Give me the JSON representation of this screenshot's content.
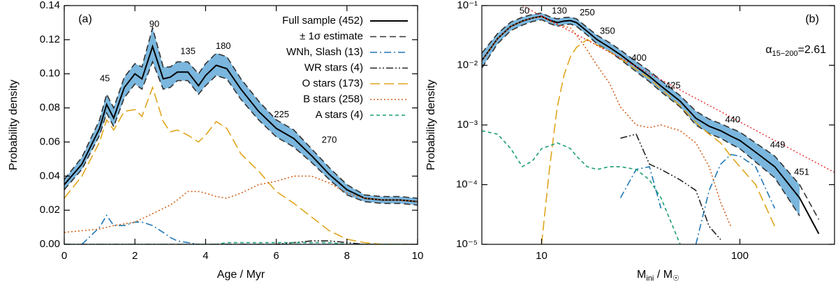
{
  "chart_data": [
    {
      "type": "line",
      "panel_label": "(a)",
      "xlabel": "Age / Myr",
      "ylabel": "Probability density",
      "xlim": [
        0,
        10
      ],
      "ylim": [
        0,
        0.14
      ],
      "xlog": false,
      "ylog": false,
      "legend": "upper right",
      "xticks": [
        0,
        2,
        4,
        6,
        8,
        10
      ],
      "yticks": [
        {
          "value": 0,
          "label": "0.00"
        },
        {
          "value": 0.02,
          "label": "0.02"
        },
        {
          "value": 0.04,
          "label": "0.04"
        },
        {
          "value": 0.06,
          "label": "0.06"
        },
        {
          "value": 0.08,
          "label": "0.08"
        },
        {
          "value": 0.1,
          "label": "0.10"
        },
        {
          "value": 0.12,
          "label": "0.12"
        },
        {
          "value": 0.14,
          "label": "0.14"
        }
      ],
      "x": [
        0,
        0.5,
        1,
        1.2,
        1.4,
        1.7,
        2,
        2.2,
        2.5,
        2.8,
        3,
        3.2,
        3.5,
        3.8,
        4,
        4.3,
        4.6,
        5,
        5.5,
        6,
        6.5,
        7,
        7.5,
        8,
        8.5,
        9,
        9.5,
        10
      ],
      "series": [
        {
          "name": "Full sample (452)",
          "color": "#000000",
          "style": "solid",
          "values": [
            0.035,
            0.047,
            0.068,
            0.082,
            0.074,
            0.092,
            0.1,
            0.097,
            0.116,
            0.097,
            0.098,
            0.101,
            0.101,
            0.093,
            0.099,
            0.105,
            0.103,
            0.091,
            0.078,
            0.068,
            0.062,
            0.052,
            0.041,
            0.032,
            0.027,
            0.026,
            0.026,
            0.025
          ]
        },
        {
          "name": "± 1σ estimate",
          "color": "#333333",
          "fill": "#7ab6dd",
          "style": "dash",
          "upper": [
            0.038,
            0.051,
            0.073,
            0.088,
            0.08,
            0.098,
            0.106,
            0.104,
            0.127,
            0.104,
            0.104,
            0.107,
            0.107,
            0.1,
            0.106,
            0.112,
            0.11,
            0.097,
            0.084,
            0.073,
            0.067,
            0.056,
            0.045,
            0.035,
            0.029,
            0.028,
            0.028,
            0.027
          ],
          "lower": [
            0.032,
            0.044,
            0.064,
            0.077,
            0.069,
            0.086,
            0.094,
            0.091,
            0.107,
            0.091,
            0.092,
            0.096,
            0.096,
            0.088,
            0.093,
            0.099,
            0.097,
            0.085,
            0.073,
            0.063,
            0.057,
            0.048,
            0.038,
            0.029,
            0.025,
            0.024,
            0.024,
            0.023
          ]
        },
        {
          "name": "WNh, Slash (13)",
          "color": "#1f77b4",
          "style": "dashdot",
          "values": [
            null,
            0,
            0.01,
            0.017,
            0.011,
            0.011,
            0.013,
            0.013,
            0.011,
            0.007,
            0.004,
            0.002,
            0.001,
            0,
            0,
            0,
            0,
            0,
            0,
            0,
            0,
            0,
            0,
            0,
            0,
            0,
            0,
            0
          ]
        },
        {
          "name": "WR stars (4)",
          "color": "#222222",
          "style": "dashdotdot",
          "values": [
            0,
            0,
            0,
            0,
            0,
            0,
            0,
            0,
            0,
            0,
            0,
            0,
            0,
            0,
            0,
            0,
            0,
            0,
            0,
            0,
            0.001,
            0.002,
            0.002,
            0.001,
            0,
            0,
            0,
            0
          ]
        },
        {
          "name": "O stars (173)",
          "color": "#e0a51c",
          "style": "longdash",
          "values": [
            0.027,
            0.04,
            0.06,
            0.073,
            0.067,
            0.078,
            0.079,
            0.075,
            0.092,
            0.072,
            0.066,
            0.067,
            0.064,
            0.06,
            0.064,
            0.072,
            0.068,
            0.053,
            0.043,
            0.031,
            0.024,
            0.016,
            0.008,
            0.003,
            0.001,
            0,
            0,
            0
          ]
        },
        {
          "name": "B stars (258)",
          "color": "#d2601a",
          "style": "dot",
          "values": [
            0.007,
            0.008,
            0.009,
            0.01,
            0.011,
            0.012,
            0.013,
            0.015,
            0.018,
            0.021,
            0.023,
            0.026,
            0.031,
            0.031,
            0.03,
            0.028,
            0.027,
            0.03,
            0.035,
            0.037,
            0.04,
            0.04,
            0.036,
            0.03,
            0.027,
            0.026,
            0.026,
            0.025
          ]
        },
        {
          "name": "A stars (4)",
          "color": "#1a9e77",
          "style": "shortdash",
          "values": [
            0,
            0,
            0,
            0,
            0,
            0,
            0,
            0,
            0,
            0,
            0,
            0,
            0,
            0,
            0,
            0,
            0.001,
            0.001,
            0.001,
            0.001,
            0.001,
            0.001,
            0.001,
            0,
            0,
            0,
            0,
            0
          ]
        }
      ],
      "annotations": [
        {
          "text": 45,
          "x": 1.15,
          "y": 0.097
        },
        {
          "text": 90,
          "x": 2.55,
          "y": 0.129
        },
        {
          "text": 135,
          "x": 3.5,
          "y": 0.113
        },
        {
          "text": 180,
          "x": 4.5,
          "y": 0.116
        },
        {
          "text": 225,
          "x": 6.15,
          "y": 0.076
        },
        {
          "text": 270,
          "x": 7.5,
          "y": 0.061
        }
      ]
    },
    {
      "type": "line",
      "panel_label": "(b)",
      "xlabel": [
        "M",
        "ini",
        " / M",
        "☉"
      ],
      "ylabel": "Probability density",
      "xlim": [
        5,
        300
      ],
      "ylim": [
        1e-05,
        0.1
      ],
      "xlog": true,
      "ylog": true,
      "xticks": [
        10,
        100
      ],
      "yticks": [
        {
          "value": 1e-05,
          "label": "10⁻⁵"
        },
        {
          "value": 0.0001,
          "label": "10⁻⁴"
        },
        {
          "value": 0.001,
          "label": "10⁻³"
        },
        {
          "value": 0.01,
          "label": "10⁻²"
        },
        {
          "value": 0.1,
          "label": "10⁻¹"
        }
      ],
      "x": [
        5,
        6,
        7,
        8,
        9,
        10,
        11,
        12,
        13,
        14,
        15,
        17,
        19,
        22,
        25,
        30,
        35,
        40,
        50,
        60,
        70,
        80,
        90,
        100,
        120,
        150,
        200,
        250,
        300
      ],
      "series": [
        {
          "name": "Full sample (452)",
          "color": "#000000",
          "style": "solid",
          "values": [
            0.012,
            0.028,
            0.045,
            0.055,
            0.062,
            0.066,
            0.057,
            0.052,
            0.055,
            0.056,
            0.052,
            0.037,
            0.027,
            0.02,
            0.015,
            0.0095,
            0.0065,
            0.0045,
            0.0025,
            0.0013,
            0.00095,
            0.0008,
            0.00065,
            0.00055,
            0.00035,
            0.0002,
            6e-05,
            1.5e-05,
            null
          ]
        },
        {
          "name": "± 1σ estimate",
          "color": "#333333",
          "fill": "#7ab6dd",
          "style": "dash",
          "upper": [
            0.016,
            0.034,
            0.053,
            0.064,
            0.071,
            0.075,
            0.065,
            0.06,
            0.063,
            0.064,
            0.06,
            0.043,
            0.032,
            0.024,
            0.018,
            0.0115,
            0.008,
            0.0056,
            0.0031,
            0.0017,
            0.00125,
            0.00105,
            0.00088,
            0.00076,
            0.0005,
            0.0003,
            0.0001,
            2.6e-05,
            null
          ],
          "lower": [
            0.009,
            0.023,
            0.038,
            0.047,
            0.054,
            0.058,
            0.05,
            0.045,
            0.048,
            0.049,
            0.045,
            0.032,
            0.023,
            0.017,
            0.0125,
            0.0078,
            0.0053,
            0.0036,
            0.002,
            0.001,
            0.00072,
            0.0006,
            0.00048,
            0.0004,
            0.00024,
            0.00013,
            3e-05,
            null,
            null
          ]
        },
        {
          "name": "WNh, Slash (13)",
          "color": "#1f77b4",
          "style": "dashdot",
          "values": [
            null,
            null,
            null,
            null,
            null,
            null,
            null,
            null,
            null,
            null,
            null,
            null,
            null,
            null,
            6e-05,
            0.00018,
            0.0002,
            4e-05,
            null,
            1e-05,
            8e-05,
            0.00022,
            0.00032,
            0.0003,
            0.0002,
            4e-05,
            null,
            null,
            null
          ]
        },
        {
          "name": "WR stars (4)",
          "color": "#222222",
          "style": "dashdotdot",
          "values": [
            null,
            null,
            null,
            null,
            null,
            null,
            null,
            null,
            null,
            null,
            null,
            null,
            null,
            null,
            0.0006,
            0.0007,
            0.00022,
            0.00018,
            0.00012,
            8e-05,
            2e-05,
            1.2e-05,
            null,
            null,
            null,
            null,
            null,
            null,
            null
          ]
        },
        {
          "name": "O stars (173)",
          "color": "#e0a51c",
          "style": "longdash",
          "values": [
            null,
            null,
            null,
            null,
            null,
            1e-05,
            0.0002,
            0.002,
            0.007,
            0.014,
            0.02,
            0.027,
            0.022,
            0.017,
            0.013,
            0.0085,
            0.006,
            0.004,
            0.0021,
            0.0011,
            0.0007,
            0.0005,
            0.0003,
            0.0002,
            0.0001,
            2e-05,
            null,
            null,
            null
          ]
        },
        {
          "name": "B stars (258)",
          "color": "#d2601a",
          "style": "dot",
          "values": [
            0.012,
            0.028,
            0.045,
            0.055,
            0.062,
            0.065,
            0.055,
            0.048,
            0.045,
            0.042,
            0.032,
            0.018,
            0.01,
            0.005,
            0.002,
            0.001,
            0.0009,
            0.001,
            0.0008,
            0.0005,
            0.0002,
            5e-05,
            2e-05,
            null,
            null,
            null,
            null,
            null,
            null
          ]
        },
        {
          "name": "A stars (4)",
          "color": "#1a9e77",
          "style": "shortdash",
          "values": [
            0.0008,
            0.0007,
            0.0004,
            0.0002,
            0.00025,
            0.0004,
            0.00045,
            0.0005,
            0.00045,
            0.0004,
            0.0003,
            0.0002,
            0.00018,
            0.0002,
            0.0002,
            0.00018,
            0.00012,
            6e-05,
            1e-05,
            null,
            null,
            null,
            null,
            null,
            null,
            null,
            null,
            null,
            null
          ]
        }
      ],
      "fit": {
        "color": "#e41a1c",
        "x": [
          8,
          300
        ],
        "values": [
          0.1,
          0.00016
        ]
      },
      "alpha_label": [
        "α",
        "15−200",
        "=2.61"
      ],
      "annotations": [
        {
          "text": 50,
          "x": 8.2,
          "y": 0.08
        },
        {
          "text": 130,
          "x": 12.3,
          "y": 0.08
        },
        {
          "text": 250,
          "x": 17,
          "y": 0.075
        },
        {
          "text": 350,
          "x": 21.5,
          "y": 0.037
        },
        {
          "text": 400,
          "x": 31,
          "y": 0.013
        },
        {
          "text": 425,
          "x": 46,
          "y": 0.0045
        },
        {
          "text": 440,
          "x": 92,
          "y": 0.0012
        },
        {
          "text": 449,
          "x": 155,
          "y": 0.00046
        },
        {
          "text": 451,
          "x": 205,
          "y": 0.00016
        }
      ]
    }
  ]
}
